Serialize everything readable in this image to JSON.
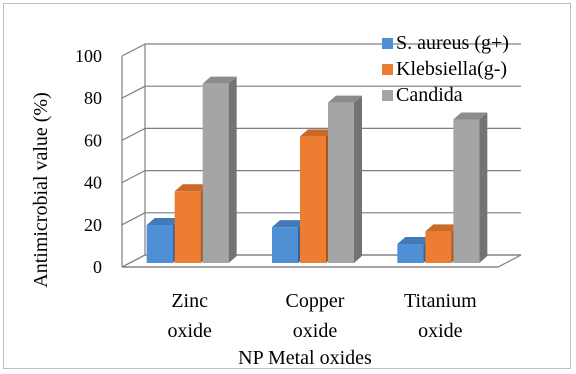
{
  "chart_data": {
    "type": "bar",
    "xlabel": "NP Metal oxides",
    "ylabel": "Antimicrobial value (%)",
    "ylim": [
      0,
      100
    ],
    "yticks": [
      0,
      20,
      40,
      60,
      80,
      100
    ],
    "categories": [
      [
        "Zinc",
        "oxide"
      ],
      [
        "Copper",
        "oxide"
      ],
      [
        "Titanium",
        "oxide"
      ]
    ],
    "series": [
      {
        "name": "S. aureus  (g+)",
        "values": [
          18,
          17,
          9
        ],
        "color": "#4f8fd6"
      },
      {
        "name": "Klebsiella(g-)",
        "values": [
          34,
          60,
          15
        ],
        "color": "#ed7d31"
      },
      {
        "name": "Candida",
        "values": [
          85,
          76,
          68
        ],
        "color": "#a5a5a5"
      }
    ],
    "legend": "top-right",
    "grid": true,
    "style": "3d-bars"
  }
}
